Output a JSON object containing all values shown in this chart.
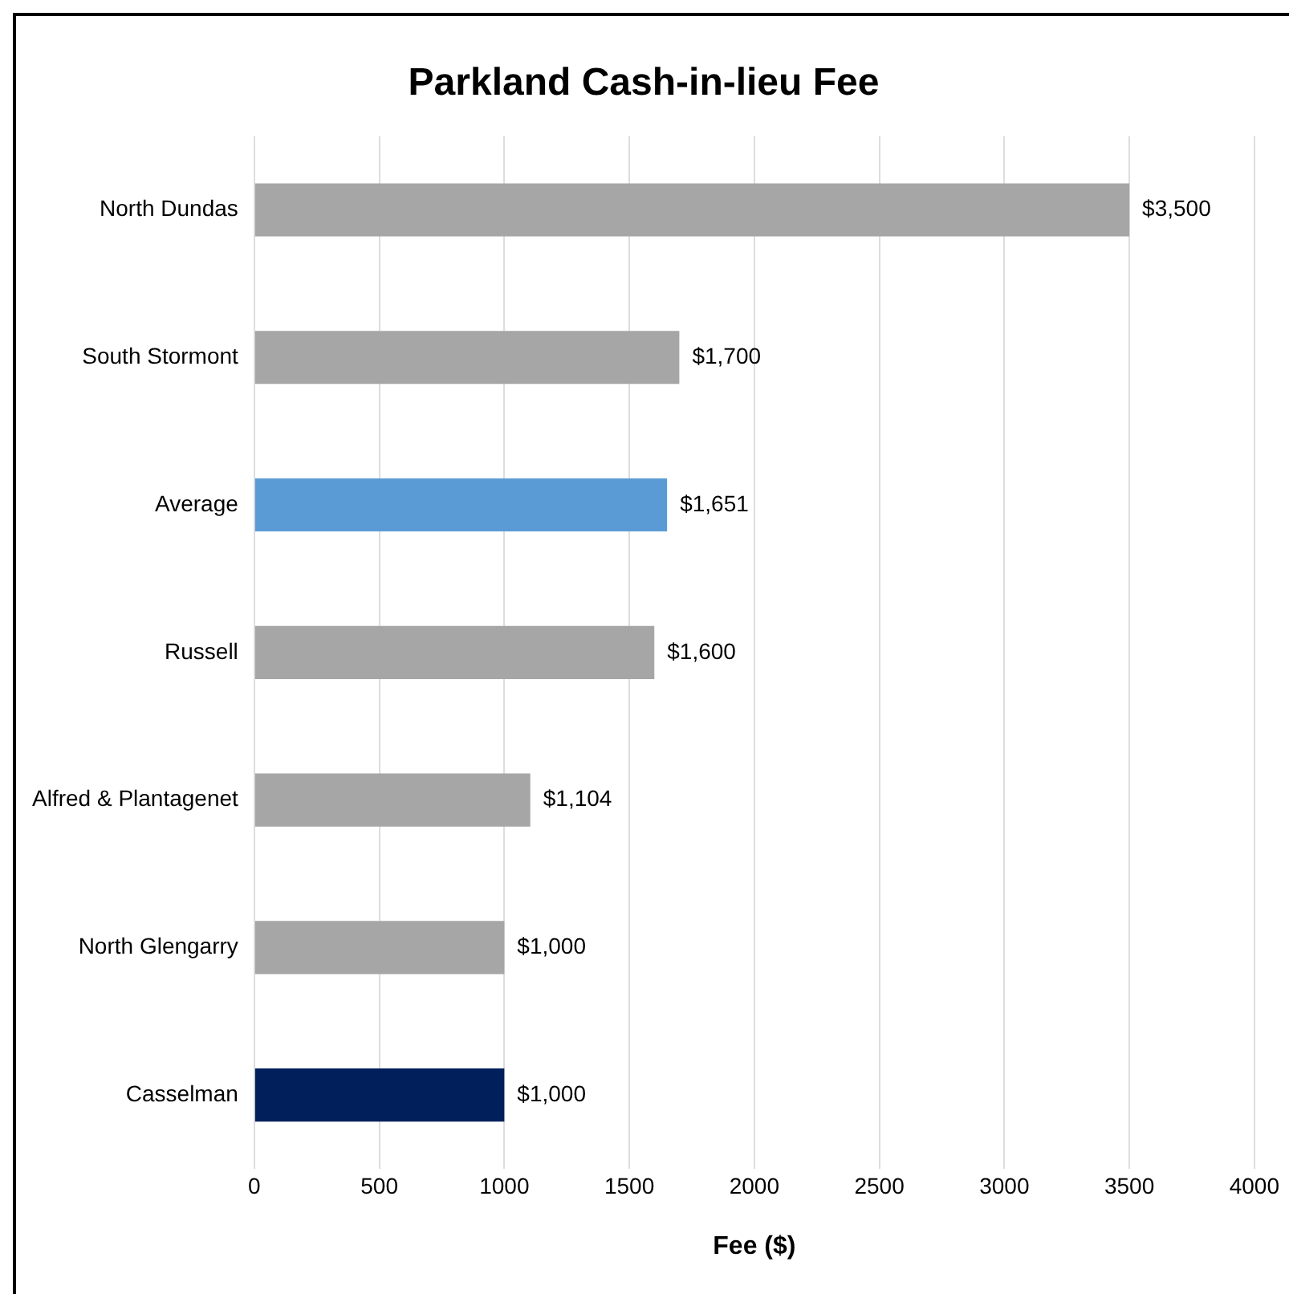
{
  "chart_data": {
    "type": "bar",
    "orientation": "horizontal",
    "title": "Parkland Cash-in-lieu Fee",
    "xlabel": "Fee ($)",
    "categories": [
      "North Dundas",
      "South Stormont",
      "Average",
      "Russell",
      "Alfred & Plantagenet",
      "North Glengarry",
      "Casselman"
    ],
    "values": [
      3500,
      1700,
      1651,
      1600,
      1104,
      1000,
      1000
    ],
    "colors": [
      "#a6a6a6",
      "#a6a6a6",
      "#5b9bd5",
      "#a6a6a6",
      "#a6a6a6",
      "#a6a6a6",
      "#001f5b"
    ],
    "value_labels": [
      "$3,500",
      "$1,700",
      "$1,651",
      "$1,600",
      "$1,104",
      "$1,000",
      "$1,000"
    ],
    "xlim": [
      0,
      4000
    ],
    "xticks": [
      0,
      500,
      1000,
      1500,
      2000,
      2500,
      3000,
      3500,
      4000
    ],
    "grid": "x",
    "legend": false
  }
}
